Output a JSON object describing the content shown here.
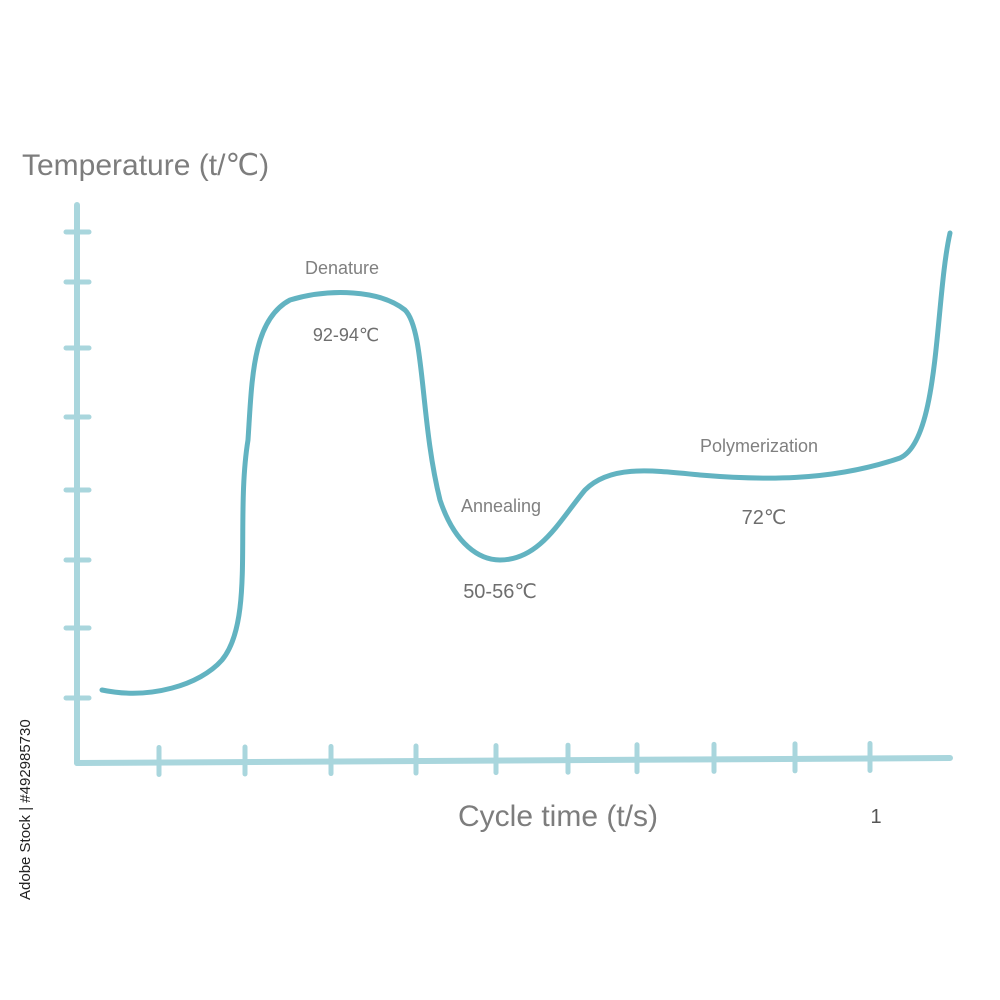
{
  "chart_data": {
    "type": "line",
    "title": "",
    "ylabel": "Temperature (t/℃)",
    "xlabel": "Cycle time (t/s)",
    "x_tick_count": 10,
    "y_tick_count": 8,
    "phases": [
      {
        "name": "Denature",
        "temperature": "92-94℃"
      },
      {
        "name": "Annealing",
        "temperature": "50-56℃"
      },
      {
        "name": "Polymerization",
        "temperature": "72℃"
      }
    ],
    "axis_number": "1",
    "grid": false,
    "legend": "none"
  },
  "colors": {
    "curve": "#62b3c1",
    "axis": "#a9d6dd",
    "text": "#7d7d7d"
  },
  "watermark": {
    "text": "Adobe Stock | #492985730"
  }
}
